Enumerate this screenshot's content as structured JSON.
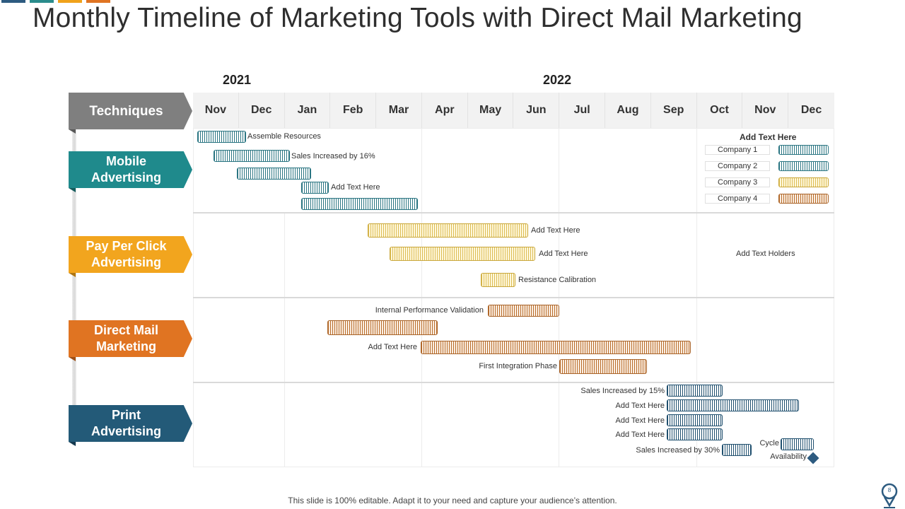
{
  "title": "Monthly Timeline of Marketing Tools with Direct Mail Marketing",
  "accent_colors": [
    "#2d5b80",
    "#2a8c8c",
    "#f0a21b",
    "#e07422"
  ],
  "years": [
    "2021",
    "2022"
  ],
  "header": {
    "label": "Techniques",
    "color": "#7f7f7f"
  },
  "months": [
    "Nov",
    "Dec",
    "Jan",
    "Feb",
    "Mar",
    "Apr",
    "May",
    "Jun",
    "Jul",
    "Aug",
    "Sep",
    "Oct",
    "Nov",
    "Dec"
  ],
  "categories": [
    {
      "label": "Mobile Advertising",
      "color": "#1f8a8c"
    },
    {
      "label": "Pay Per Click Advertising",
      "color": "#f2a51e"
    },
    {
      "label": "Direct Mail Marketing",
      "color": "#e07422"
    },
    {
      "label": "Print Advertising",
      "color": "#235a78"
    }
  ],
  "chart_data": {
    "type": "gantt",
    "title": "Monthly Timeline of Marketing Tools with Direct Mail Marketing",
    "time_axis": {
      "unit": "month",
      "start": "Nov 2021",
      "end": "Dec 2022",
      "ticks": [
        "Nov",
        "Dec",
        "Jan",
        "Feb",
        "Mar",
        "Apr",
        "May",
        "Jun",
        "Jul",
        "Aug",
        "Sep",
        "Oct",
        "Nov",
        "Dec"
      ]
    },
    "series": [
      {
        "name": "Mobile Advertising",
        "tasks": [
          {
            "start": 0.1,
            "end": 1.15,
            "label": "Assemble Resources"
          },
          {
            "start": 0.45,
            "end": 2.1,
            "label": "Sales Increased by 16%"
          },
          {
            "start": 0.95,
            "end": 2.55,
            "label": ""
          },
          {
            "start": 2.35,
            "end": 2.95,
            "label": "Add Text Here"
          },
          {
            "start": 2.35,
            "end": 4.9,
            "label": ""
          }
        ]
      },
      {
        "name": "Pay Per Click Advertising",
        "tasks": [
          {
            "start": 3.8,
            "end": 7.3,
            "label": "Add Text Here"
          },
          {
            "start": 4.3,
            "end": 7.45,
            "label": "Add Text Here"
          },
          {
            "start": 6.25,
            "end": 7.0,
            "label": "Resistance Calibration"
          }
        ]
      },
      {
        "name": "Direct Mail Marketing",
        "tasks": [
          {
            "start": 6.4,
            "end": 8.0,
            "label": "Internal Performance Validation"
          },
          {
            "start": 2.95,
            "end": 5.35,
            "label": ""
          },
          {
            "start": 4.95,
            "end": 10.85,
            "label": "Add Text Here"
          },
          {
            "start": 7.95,
            "end": 9.85,
            "label": "First Integration Phase"
          }
        ]
      },
      {
        "name": "Print Advertising",
        "tasks": [
          {
            "start": 10.35,
            "end": 11.55,
            "label": "Sales Increased by 15%"
          },
          {
            "start": 10.35,
            "end": 13.25,
            "label": "Add Text Here"
          },
          {
            "start": 10.35,
            "end": 11.55,
            "label": "Add Text Here"
          },
          {
            "start": 10.35,
            "end": 11.55,
            "label": "Add Text Here"
          },
          {
            "start": 11.55,
            "end": 12.2,
            "label": "Sales Increased by 30%"
          },
          {
            "start": 12.9,
            "end": 13.6,
            "label": "Cycle"
          }
        ]
      }
    ],
    "milestones": [
      {
        "at": 13.55,
        "label": "Availability"
      }
    ],
    "legend": {
      "title": "Add  Text Here",
      "items": [
        {
          "label": "Company  1",
          "color": "#2a7582"
        },
        {
          "label": "Company  2",
          "color": "#2a7582"
        },
        {
          "label": "Company  3",
          "color": "#dcbc55"
        },
        {
          "label": "Company  4",
          "color": "#b86d2b"
        }
      ]
    },
    "notes": [
      "Add Text Holders"
    ]
  },
  "footer": "This slide is 100% editable. Adapt it to your need and capture your audience’s attention.",
  "page_number": "8"
}
